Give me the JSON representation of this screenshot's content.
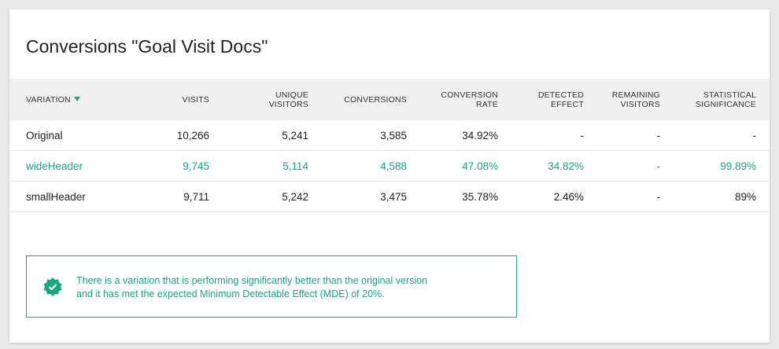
{
  "title": "Conversions \"Goal Visit Docs\"",
  "table": {
    "headers": [
      "VARIATION",
      "VISITS",
      "UNIQUE VISITORS",
      "CONVERSIONS",
      "CONVERSION RATE",
      "DETECTED EFFECT",
      "REMAINING VISITORS",
      "STATISTICAL SIGNIFICANCE"
    ],
    "rows": [
      [
        "Original",
        "10,266",
        "5,241",
        "3,585",
        "34.92%",
        "-",
        "-",
        "-"
      ],
      [
        "wideHeader",
        "9,745",
        "5,114",
        "4,588",
        "47.08%",
        "34.82%",
        "-",
        "99.89%"
      ],
      [
        "smallHeader",
        "9,711",
        "5,242",
        "3,475",
        "35.78%",
        "2.46%",
        "-",
        "89%"
      ]
    ],
    "highlight_row": 1,
    "highlight_color": "#1aa77e"
  },
  "notice": {
    "lines": [
      "There is a variation that is performing significantly better than the original version",
      "and it has met the expected Minimum Detectable Effect (MDE) of 20%."
    ]
  }
}
